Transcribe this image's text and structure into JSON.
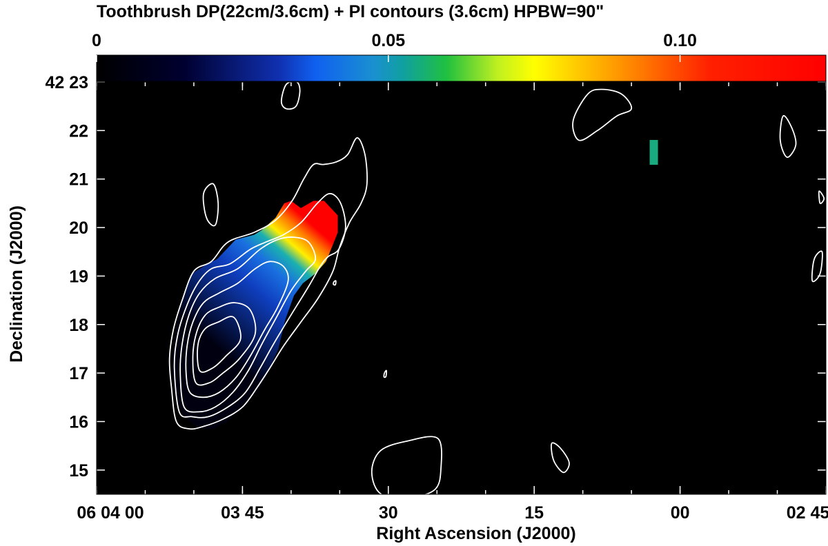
{
  "chart_data": {
    "type": "heatmap",
    "title": "Toothbrush  DP(22cm/3.6cm)  +  PI contours (3.6cm)  HPBW=90\"",
    "xlabel": "Right Ascension (J2000)",
    "ylabel": "Declination (J2000)",
    "colorbar": {
      "range": [
        0,
        0.125
      ],
      "tick_values": [
        0,
        0.05,
        0.1
      ],
      "tick_labels": [
        "0",
        "0.05",
        "0.10"
      ],
      "colormap": "black-blue-cyan-green-yellow-orange-red"
    },
    "x_axis": {
      "unit": "seconds of RA offset from 06 04 00 (decreasing to the right)",
      "range": [
        0,
        -75
      ],
      "tick_values": [
        0,
        -15,
        -30,
        -45,
        -60,
        -75
      ],
      "tick_labels": [
        "06 04 00",
        "03 45",
        "30",
        "15",
        "00",
        "02 45"
      ]
    },
    "y_axis": {
      "unit": "arcmin of Dec (+42 deg)",
      "range": [
        14.5,
        23
      ],
      "tick_values": [
        23,
        22,
        21,
        20,
        19,
        18,
        17,
        16,
        15
      ],
      "tick_labels": [
        "42 23",
        "22",
        "21",
        "20",
        "19",
        "18",
        "17",
        "16",
        "15"
      ]
    },
    "dp_map": {
      "background": "#000000",
      "gradient_axis": {
        "from": [
          -12,
          17.6
        ],
        "to": [
          -22.5,
          20.0
        ]
      },
      "gradient_stops": [
        {
          "t": 0.0,
          "color": "#000010"
        },
        {
          "t": 0.45,
          "color": "#0f3fbf"
        },
        {
          "t": 0.62,
          "color": "#1a6fe0"
        },
        {
          "t": 0.74,
          "color": "#1ab0b0"
        },
        {
          "t": 0.82,
          "color": "#ffee00"
        },
        {
          "t": 0.92,
          "color": "#ff7a00"
        },
        {
          "t": 1.0,
          "color": "#ff0000"
        }
      ],
      "region_outline": [
        [
          -21.0,
          20.4
        ],
        [
          -20.0,
          20.55
        ],
        [
          -19.3,
          20.5
        ],
        [
          -18.4,
          20.2
        ],
        [
          -17.0,
          19.95
        ],
        [
          -16.2,
          19.85
        ],
        [
          -14.3,
          19.75
        ],
        [
          -12.4,
          19.35
        ],
        [
          -11.4,
          19.25
        ],
        [
          -9.8,
          19.05
        ],
        [
          -9.1,
          18.7
        ],
        [
          -8.5,
          18.3
        ],
        [
          -7.9,
          17.7
        ],
        [
          -7.7,
          17.1
        ],
        [
          -8.0,
          16.6
        ],
        [
          -8.8,
          16.15
        ],
        [
          -10.5,
          15.85
        ],
        [
          -12.0,
          15.85
        ],
        [
          -13.4,
          16.0
        ],
        [
          -15.2,
          16.35
        ],
        [
          -16.8,
          16.7
        ],
        [
          -17.8,
          17.1
        ],
        [
          -18.7,
          17.5
        ],
        [
          -19.4,
          18.1
        ],
        [
          -20.3,
          18.6
        ],
        [
          -21.2,
          18.85
        ],
        [
          -22.5,
          19.05
        ],
        [
          -23.6,
          19.3
        ],
        [
          -24.2,
          19.6
        ],
        [
          -24.8,
          19.9
        ],
        [
          -24.8,
          20.25
        ],
        [
          -23.4,
          20.55
        ],
        [
          -22.3,
          20.55
        ]
      ],
      "isolated_pixel_group": {
        "center": [
          -57.3,
          21.55
        ],
        "color": "#1aaa80"
      }
    },
    "pi_contours": [
      {
        "level": 1,
        "points": [
          [
            -8.2,
            16.0
          ],
          [
            -9.5,
            15.85
          ],
          [
            -11.0,
            15.9
          ],
          [
            -13.0,
            16.05
          ],
          [
            -15.0,
            16.3
          ],
          [
            -16.5,
            16.7
          ],
          [
            -17.8,
            17.1
          ],
          [
            -19.2,
            17.55
          ],
          [
            -21.0,
            18.05
          ],
          [
            -22.8,
            18.55
          ],
          [
            -24.3,
            19.1
          ],
          [
            -25.0,
            19.6
          ],
          [
            -26.0,
            20.1
          ],
          [
            -27.2,
            20.5
          ],
          [
            -27.8,
            20.9
          ],
          [
            -27.6,
            21.5
          ],
          [
            -26.8,
            21.85
          ],
          [
            -25.8,
            21.5
          ],
          [
            -24.6,
            21.35
          ],
          [
            -23.3,
            21.3
          ],
          [
            -22.3,
            21.3
          ],
          [
            -21.3,
            21.0
          ],
          [
            -20.1,
            20.55
          ],
          [
            -18.4,
            20.15
          ],
          [
            -16.2,
            19.9
          ],
          [
            -13.5,
            19.7
          ],
          [
            -11.8,
            19.3
          ],
          [
            -10.0,
            19.1
          ],
          [
            -8.8,
            18.5
          ],
          [
            -7.9,
            17.9
          ],
          [
            -7.5,
            17.3
          ],
          [
            -7.7,
            16.7
          ]
        ]
      },
      {
        "level": 2,
        "points": [
          [
            -8.5,
            16.2
          ],
          [
            -9.8,
            16.1
          ],
          [
            -11.5,
            16.1
          ],
          [
            -13.5,
            16.3
          ],
          [
            -15.3,
            16.6
          ],
          [
            -16.8,
            17.1
          ],
          [
            -18.2,
            17.6
          ],
          [
            -20.0,
            18.2
          ],
          [
            -21.7,
            18.75
          ],
          [
            -23.0,
            19.2
          ],
          [
            -23.8,
            19.4
          ],
          [
            -24.9,
            19.55
          ],
          [
            -25.6,
            20.0
          ],
          [
            -25.1,
            20.5
          ],
          [
            -24.0,
            20.7
          ],
          [
            -22.7,
            20.5
          ],
          [
            -21.0,
            20.1
          ],
          [
            -19.2,
            19.85
          ],
          [
            -17.4,
            19.7
          ],
          [
            -15.8,
            19.55
          ],
          [
            -13.7,
            19.25
          ],
          [
            -11.8,
            19.15
          ],
          [
            -10.4,
            18.85
          ],
          [
            -9.2,
            18.35
          ],
          [
            -8.3,
            17.75
          ],
          [
            -8.0,
            17.1
          ]
        ]
      },
      {
        "level": 3,
        "points": [
          [
            -9.0,
            16.3
          ],
          [
            -10.5,
            16.2
          ],
          [
            -12.2,
            16.3
          ],
          [
            -14.0,
            16.6
          ],
          [
            -15.6,
            17.05
          ],
          [
            -17.0,
            17.6
          ],
          [
            -18.5,
            18.15
          ],
          [
            -20.0,
            18.7
          ],
          [
            -21.5,
            19.1
          ],
          [
            -22.5,
            19.35
          ],
          [
            -21.8,
            19.7
          ],
          [
            -20.3,
            19.8
          ],
          [
            -18.6,
            19.75
          ],
          [
            -16.8,
            19.55
          ],
          [
            -14.5,
            19.15
          ],
          [
            -12.2,
            18.95
          ],
          [
            -10.6,
            18.65
          ],
          [
            -9.5,
            18.2
          ],
          [
            -8.8,
            17.6
          ],
          [
            -8.6,
            17.0
          ]
        ]
      },
      {
        "level": 4,
        "points": [
          [
            -9.6,
            16.6
          ],
          [
            -11.0,
            16.5
          ],
          [
            -12.6,
            16.6
          ],
          [
            -14.3,
            16.9
          ],
          [
            -15.8,
            17.35
          ],
          [
            -17.3,
            17.9
          ],
          [
            -18.6,
            18.35
          ],
          [
            -19.7,
            18.9
          ],
          [
            -19.2,
            19.2
          ],
          [
            -17.8,
            19.3
          ],
          [
            -16.3,
            19.15
          ],
          [
            -14.5,
            18.85
          ],
          [
            -12.6,
            18.65
          ],
          [
            -11.0,
            18.45
          ],
          [
            -9.9,
            18.05
          ],
          [
            -9.3,
            17.55
          ],
          [
            -9.2,
            17.0
          ]
        ]
      },
      {
        "level": 5,
        "points": [
          [
            -10.2,
            16.8
          ],
          [
            -11.6,
            16.8
          ],
          [
            -13.0,
            17.0
          ],
          [
            -14.7,
            17.3
          ],
          [
            -16.3,
            17.8
          ],
          [
            -15.8,
            18.3
          ],
          [
            -14.2,
            18.45
          ],
          [
            -12.5,
            18.35
          ],
          [
            -11.2,
            18.2
          ],
          [
            -10.3,
            17.85
          ],
          [
            -9.9,
            17.35
          ]
        ]
      },
      {
        "level": 6,
        "points": [
          [
            -10.6,
            17.05
          ],
          [
            -11.9,
            17.1
          ],
          [
            -13.3,
            17.35
          ],
          [
            -14.8,
            17.7
          ],
          [
            -14.1,
            18.15
          ],
          [
            -12.5,
            18.05
          ],
          [
            -11.1,
            17.9
          ],
          [
            -10.4,
            17.55
          ]
        ]
      },
      {
        "level": 7,
        "points": [
          [
            -24.6,
            18.9
          ],
          [
            -24.4,
            18.88
          ],
          [
            -24.35,
            18.83
          ],
          [
            -24.55,
            18.82
          ]
        ]
      },
      {
        "level": 8,
        "points": [
          [
            -29.8,
            17.05
          ],
          [
            -29.6,
            17.0
          ],
          [
            -29.55,
            16.92
          ],
          [
            -29.75,
            16.93
          ]
        ]
      },
      {
        "level": 9,
        "points": [
          [
            -54.0,
            22.75
          ],
          [
            -52.0,
            22.85
          ],
          [
            -50.5,
            22.75
          ],
          [
            -49.0,
            22.2
          ],
          [
            -49.6,
            21.8
          ],
          [
            -51.5,
            22.0
          ],
          [
            -53.5,
            22.3
          ],
          [
            -55.0,
            22.45
          ]
        ]
      },
      {
        "level": 10,
        "points": [
          [
            -20.6,
            23.0
          ],
          [
            -19.5,
            22.95
          ],
          [
            -19.0,
            22.6
          ],
          [
            -19.5,
            22.45
          ],
          [
            -20.5,
            22.5
          ],
          [
            -20.9,
            22.8
          ]
        ]
      },
      {
        "level": 11,
        "points": [
          [
            -71.5,
            22.05
          ],
          [
            -70.6,
            22.3
          ],
          [
            -70.3,
            21.8
          ],
          [
            -71.0,
            21.45
          ],
          [
            -71.9,
            21.7
          ]
        ]
      },
      {
        "level": 12,
        "points": [
          [
            -12.0,
            20.9
          ],
          [
            -11.0,
            20.7
          ],
          [
            -11.3,
            20.2
          ],
          [
            -12.2,
            20.05
          ],
          [
            -12.5,
            20.5
          ]
        ]
      },
      {
        "level": 13,
        "points": [
          [
            -74.3,
            20.75
          ],
          [
            -74.8,
            20.6
          ],
          [
            -74.4,
            20.5
          ]
        ]
      },
      {
        "level": 14,
        "points": [
          [
            -74.6,
            19.5
          ],
          [
            -73.8,
            19.35
          ],
          [
            -73.6,
            18.9
          ],
          [
            -74.4,
            19.05
          ]
        ]
      },
      {
        "level": 15,
        "points": [
          [
            -46.8,
            15.55
          ],
          [
            -47.7,
            15.45
          ],
          [
            -48.6,
            15.15
          ],
          [
            -48.0,
            14.95
          ],
          [
            -47.0,
            15.2
          ]
        ]
      },
      {
        "level": 16,
        "points": [
          [
            -35.1,
            15.65
          ],
          [
            -32.0,
            15.6
          ],
          [
            -29.2,
            15.4
          ],
          [
            -28.3,
            14.95
          ],
          [
            -29.3,
            14.5
          ],
          [
            -32.5,
            14.45
          ],
          [
            -34.8,
            14.6
          ],
          [
            -35.4,
            15.0
          ]
        ]
      }
    ]
  }
}
